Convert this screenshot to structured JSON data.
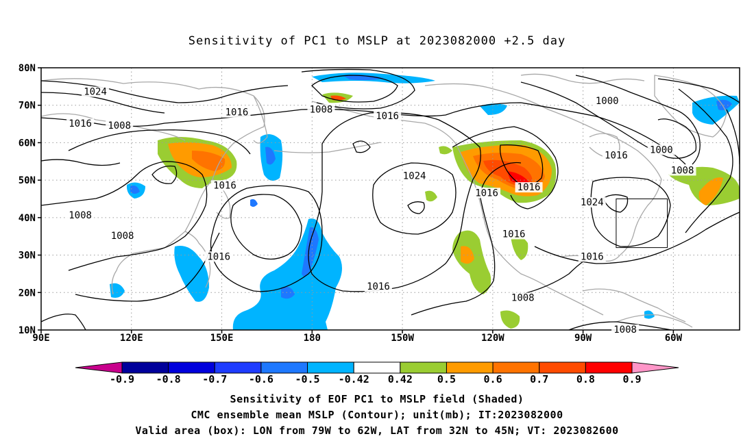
{
  "title": "Sensitivity of PC1 to MSLP at 2023082000 +2.5 day",
  "lat_labels": [
    "80N",
    "70N",
    "60N",
    "50N",
    "40N",
    "30N",
    "20N",
    "10N"
  ],
  "lon_labels": [
    "90E",
    "120E",
    "150E",
    "180",
    "150W",
    "120W",
    "90W",
    "60W"
  ],
  "isobar_labels": [
    {
      "text": "1024",
      "lon": 108,
      "lat": 73.5
    },
    {
      "text": "1016",
      "lon": 103,
      "lat": 65
    },
    {
      "text": "1008",
      "lon": 116,
      "lat": 64.5
    },
    {
      "text": "1016",
      "lon": 155,
      "lat": 68
    },
    {
      "text": "1008",
      "lon": 183,
      "lat": 68.8
    },
    {
      "text": "1016",
      "lon": 205,
      "lat": 67
    },
    {
      "text": "1024",
      "lon": 214,
      "lat": 51
    },
    {
      "text": "1016",
      "lon": 151,
      "lat": 48.5
    },
    {
      "text": "1008",
      "lon": 103,
      "lat": 40.5
    },
    {
      "text": "1008",
      "lon": 117,
      "lat": 35
    },
    {
      "text": "1016",
      "lon": 149,
      "lat": 29.5
    },
    {
      "text": "1016",
      "lon": 202,
      "lat": 21.5
    },
    {
      "text": "1016",
      "lon": 238,
      "lat": 46.5
    },
    {
      "text": "1016",
      "lon": 252,
      "lat": 48
    },
    {
      "text": "1016",
      "lon": 247,
      "lat": 35.5
    },
    {
      "text": "1024",
      "lon": 273,
      "lat": 44
    },
    {
      "text": "1016",
      "lon": 273,
      "lat": 29.5
    },
    {
      "text": "1008",
      "lon": 250,
      "lat": 18.5
    },
    {
      "text": "1000",
      "lon": 278,
      "lat": 71
    },
    {
      "text": "1016",
      "lon": 281,
      "lat": 56.5
    },
    {
      "text": "1000",
      "lon": 296,
      "lat": 58
    },
    {
      "text": "1008",
      "lon": 303,
      "lat": 52.5
    },
    {
      "text": "1008",
      "lon": 284,
      "lat": 10
    }
  ],
  "colorbar": {
    "labels": [
      "-0.9",
      "-0.8",
      "-0.7",
      "-0.6",
      "-0.5",
      "-0.42",
      "0.42",
      "0.5",
      "0.6",
      "0.7",
      "0.8",
      "0.9"
    ],
    "colors": [
      "#00009b",
      "#0000dc",
      "#1e3cff",
      "#1e78ff",
      "#00b4ff",
      "#ffffff",
      "#9acd32",
      "#ff9b00",
      "#ff7300",
      "#ff4b00",
      "#ff0000"
    ],
    "end_low": "#c8008c",
    "end_high": "#ff96c8"
  },
  "valid_box": {
    "lon_w": -79,
    "lon_e": -62,
    "lat_s": 32,
    "lat_n": 45
  },
  "captions": [
    "Sensitivity of EOF PC1 to MSLP field (Shaded)",
    "CMC ensemble mean MSLP (Contour); unit(mb); IT:2023082000",
    "Valid area (box): LON from 79W to 62W, LAT from 32N to 45N; VT: 2023082600"
  ]
}
